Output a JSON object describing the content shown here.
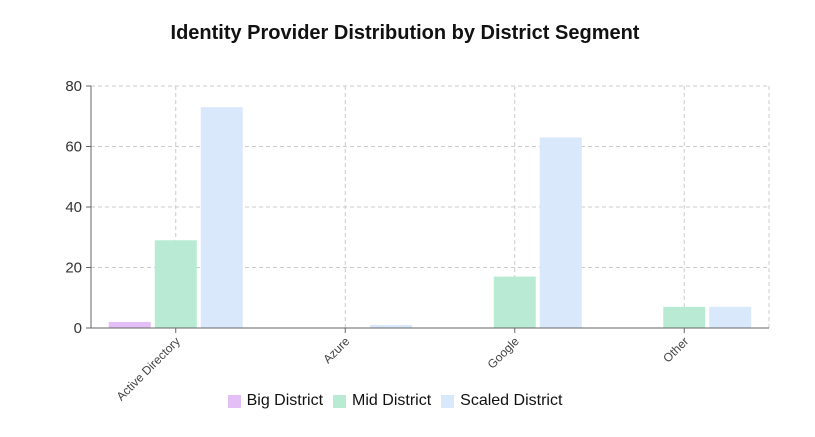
{
  "chart_data": {
    "type": "bar",
    "title": "Identity Provider Distribution by District Segment",
    "categories": [
      "Active Directory",
      "Azure",
      "Google",
      "Other"
    ],
    "series": [
      {
        "name": "Big District",
        "color": "#e4bff5",
        "values": [
          2,
          0,
          0,
          0
        ]
      },
      {
        "name": "Mid District",
        "color": "#b9ebd4",
        "values": [
          29,
          0,
          17,
          7
        ]
      },
      {
        "name": "Scaled District",
        "color": "#d9e8fb",
        "values": [
          73,
          1,
          63,
          7
        ]
      }
    ],
    "ylim": [
      0,
      80
    ],
    "yticks": [
      0,
      20,
      40,
      60,
      80
    ],
    "grid": true,
    "legend_position": "bottom"
  }
}
